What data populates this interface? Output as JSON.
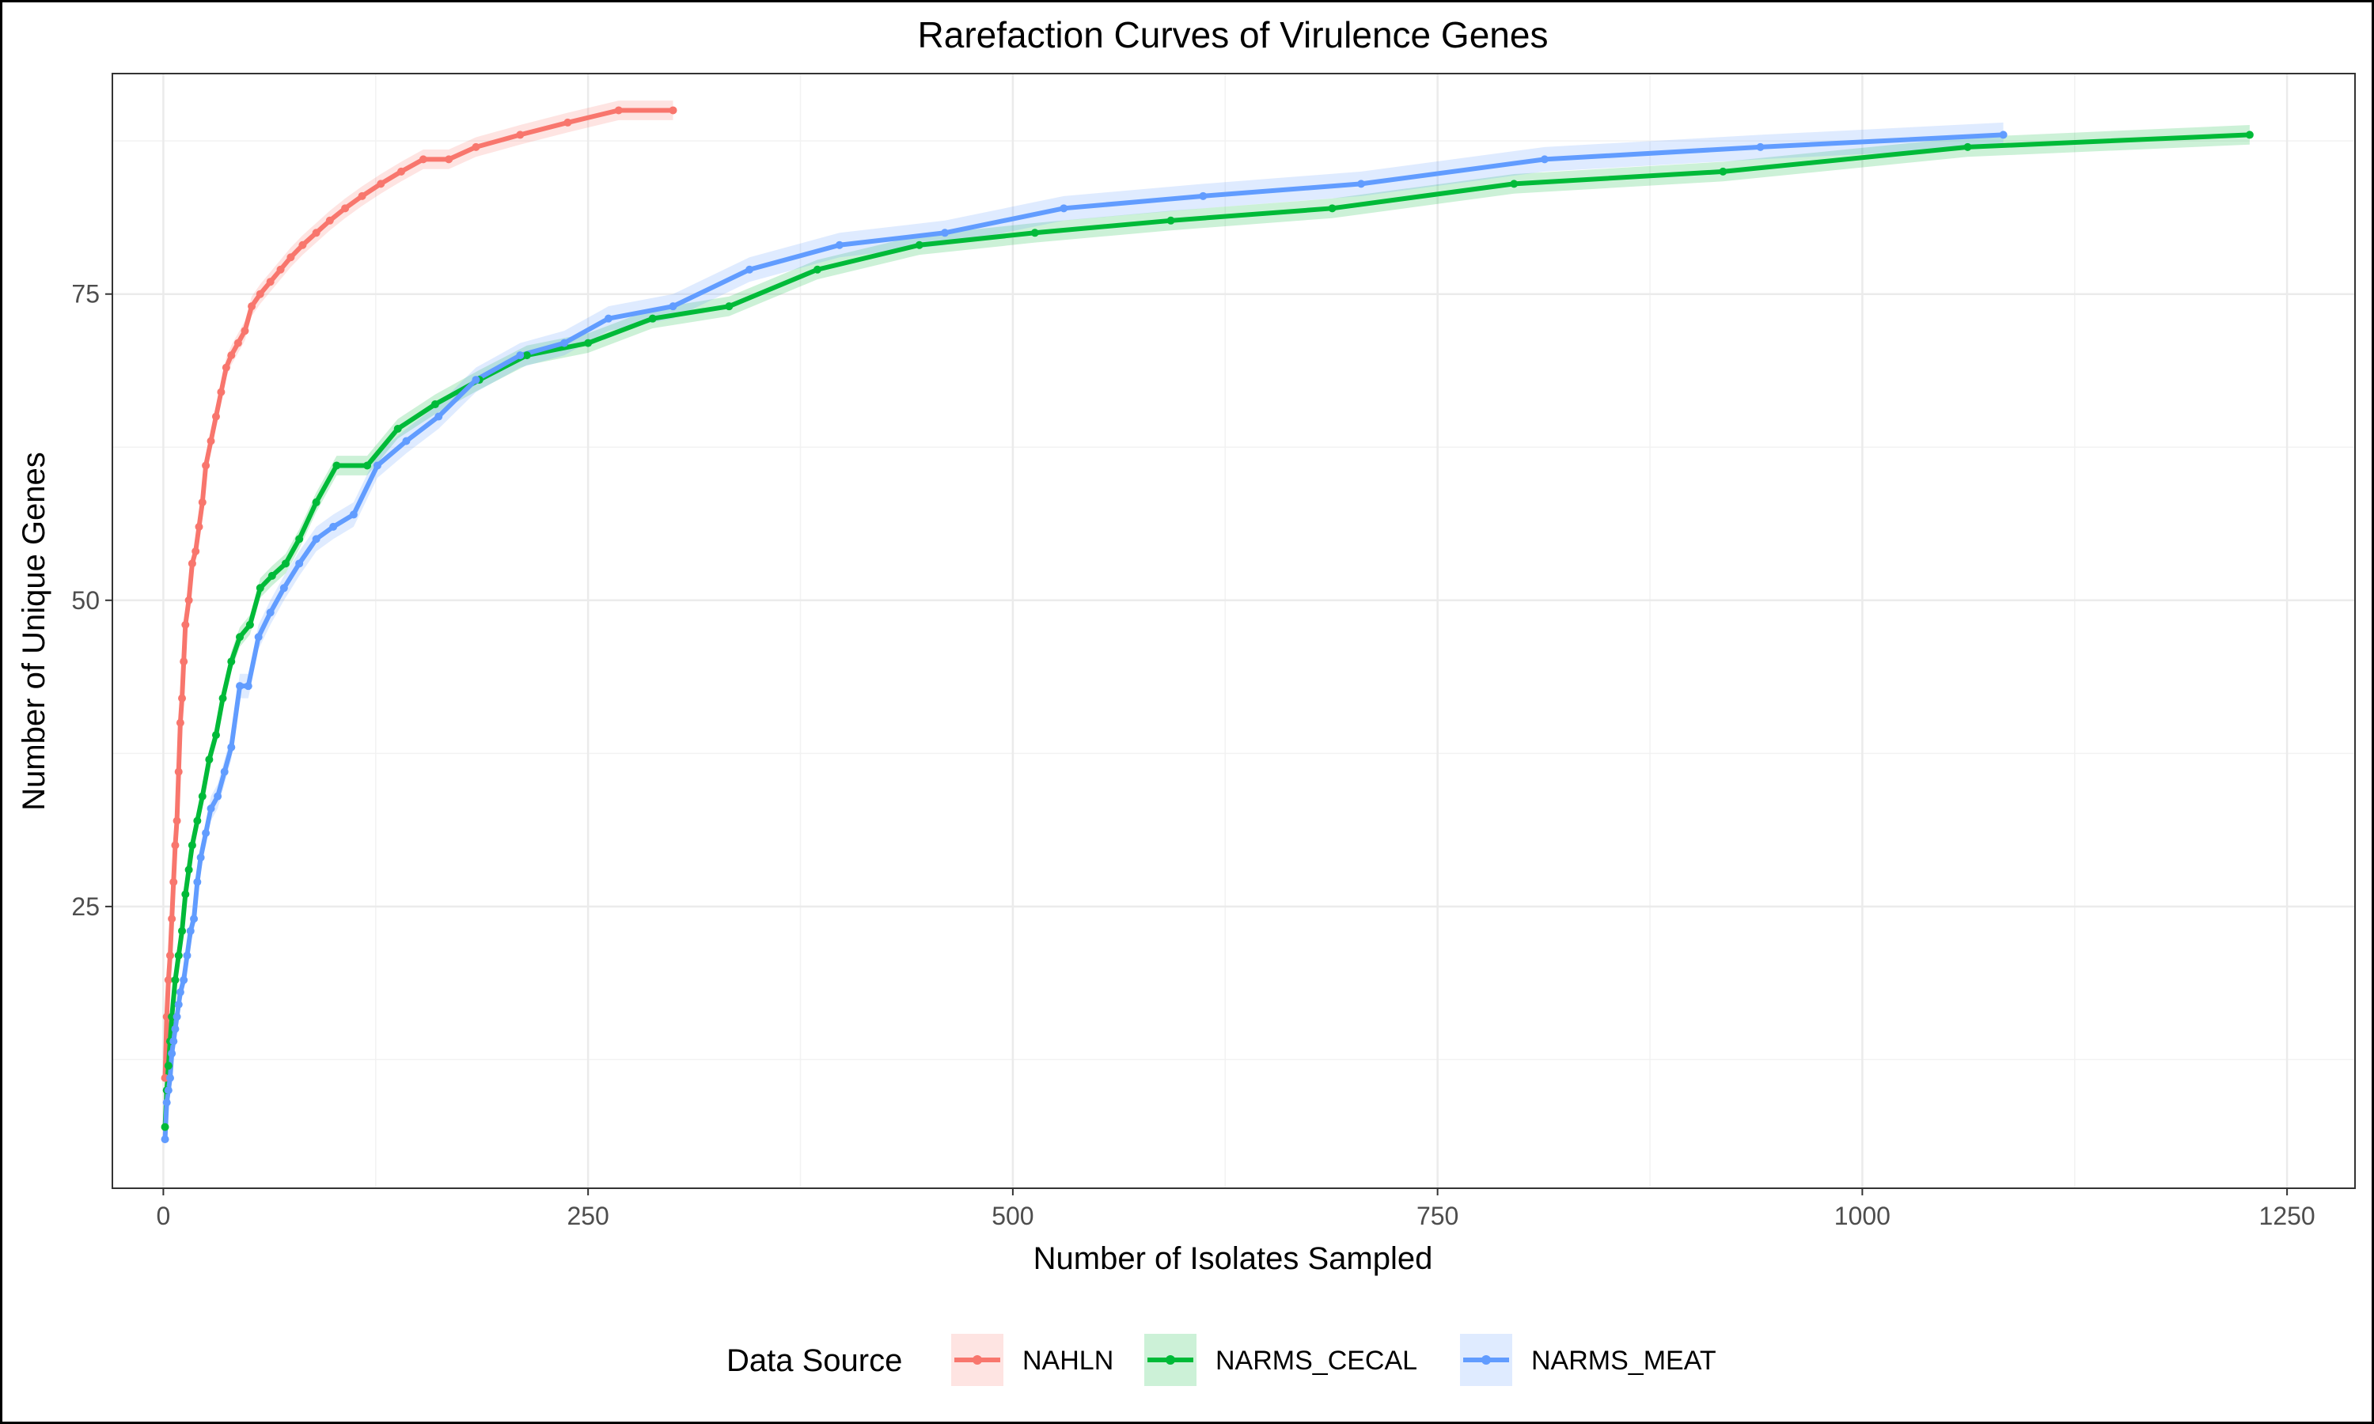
{
  "chart_data": {
    "type": "line",
    "title": "Rarefaction Curves of Virulence Genes",
    "xlabel": "Number of Isolates Sampled",
    "ylabel": "Number of Unique Genes",
    "xlim": [
      -30,
      1290
    ],
    "ylim": [
      2,
      93
    ],
    "xticks": [
      0,
      250,
      500,
      750,
      1000,
      1250
    ],
    "xtick_labels": [
      "0",
      "250",
      "500",
      "750",
      "1000",
      "1250"
    ],
    "yticks": [
      25,
      50,
      75
    ],
    "ytick_labels": [
      "25",
      "50",
      "75"
    ],
    "grid": true,
    "legend": {
      "title": "Data Source",
      "position": "bottom"
    },
    "series": [
      {
        "name": "NAHLN",
        "color": "#F8766D",
        "ribbon": 0.8,
        "x": [
          1,
          2,
          3,
          4,
          5,
          6,
          7,
          8,
          9,
          10,
          11,
          12,
          13,
          15,
          17,
          19,
          21,
          23,
          25,
          28,
          31,
          34,
          37,
          40,
          44,
          48,
          52,
          57,
          63,
          69,
          75,
          82,
          90,
          98,
          107,
          117,
          128,
          140,
          153,
          168,
          184,
          210,
          238,
          268,
          300
        ],
        "y": [
          11,
          16,
          19,
          21,
          24,
          27,
          30,
          32,
          36,
          40,
          42,
          45,
          48,
          50,
          53,
          54,
          56,
          58,
          61,
          63,
          65,
          67,
          69,
          70,
          71,
          72,
          74,
          75,
          76,
          77,
          78,
          79,
          80,
          81,
          82,
          83,
          84,
          85,
          86,
          86,
          87,
          88,
          89,
          90,
          90
        ]
      },
      {
        "name": "NARMS_CECAL",
        "color": "#00BA38",
        "ribbon": 0.8,
        "x": [
          1,
          2,
          3,
          4,
          5,
          7,
          9,
          11,
          13,
          15,
          17,
          20,
          23,
          27,
          31,
          35,
          40,
          45,
          51,
          57,
          64,
          72,
          80,
          90,
          102,
          120,
          138,
          160,
          186,
          214,
          250,
          288,
          333,
          385,
          445,
          513,
          593,
          688,
          795,
          918,
          1062,
          1228
        ],
        "y": [
          7,
          10,
          12,
          14,
          16,
          19,
          21,
          23,
          26,
          28,
          30,
          32,
          34,
          37,
          39,
          42,
          45,
          47,
          48,
          51,
          52,
          53,
          55,
          58,
          61,
          61,
          64,
          66,
          68,
          70,
          71,
          73,
          74,
          77,
          79,
          80,
          81,
          82,
          84,
          85,
          87,
          88
        ]
      },
      {
        "name": "NARMS_MEAT",
        "color": "#619CFF",
        "ribbon": 1.0,
        "x": [
          1,
          2,
          3,
          4,
          5,
          6,
          7,
          8,
          9,
          10,
          12,
          14,
          16,
          18,
          20,
          22,
          25,
          28,
          32,
          36,
          40,
          45,
          50,
          56,
          63,
          71,
          80,
          90,
          100,
          112,
          126,
          143,
          162,
          184,
          210,
          236,
          262,
          300,
          345,
          398,
          460,
          530,
          612,
          705,
          813,
          940,
          1083
        ],
        "y": [
          6,
          9,
          10,
          11,
          13,
          14,
          15,
          16,
          17,
          18,
          19,
          21,
          23,
          24,
          27,
          29,
          31,
          33,
          34,
          36,
          38,
          43,
          43,
          47,
          49,
          51,
          53,
          55,
          56,
          57,
          61,
          63,
          65,
          68,
          70,
          71,
          73,
          74,
          77,
          79,
          80,
          82,
          83,
          84,
          86,
          87,
          88
        ]
      }
    ]
  }
}
